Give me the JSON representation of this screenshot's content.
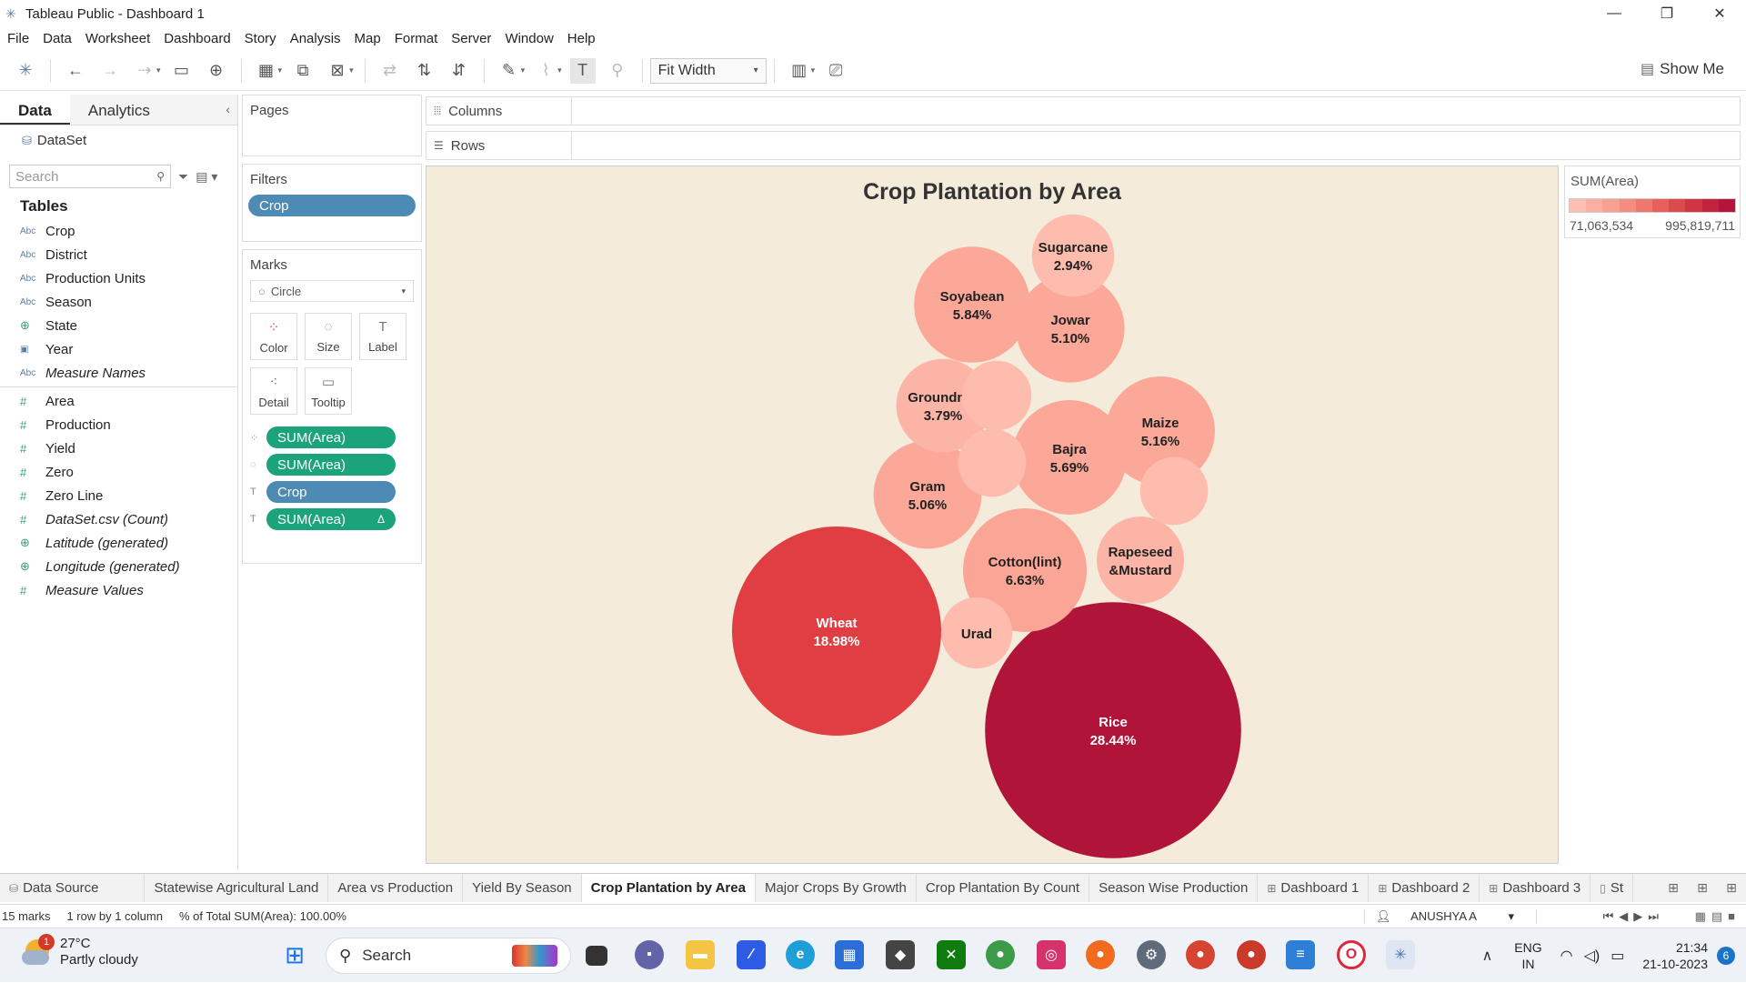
{
  "window": {
    "title": "Tableau Public - Dashboard 1"
  },
  "menu": [
    "File",
    "Data",
    "Worksheet",
    "Dashboard",
    "Story",
    "Analysis",
    "Map",
    "Format",
    "Server",
    "Window",
    "Help"
  ],
  "toolbar": {
    "fit": "Fit Width",
    "show_me": "Show Me"
  },
  "data_pane": {
    "tab_data": "Data",
    "tab_analytics": "Analytics",
    "dataset": "DataSet",
    "search_placeholder": "Search",
    "tables_heading": "Tables",
    "dimensions": [
      {
        "type": "Abc",
        "name": "Crop"
      },
      {
        "type": "Abc",
        "name": "District"
      },
      {
        "type": "Abc",
        "name": "Production Units"
      },
      {
        "type": "Abc",
        "name": "Season"
      },
      {
        "type": "globe",
        "name": "State"
      },
      {
        "type": "date",
        "name": "Year"
      },
      {
        "type": "Abc",
        "name": "Measure Names"
      }
    ],
    "measures": [
      {
        "type": "#",
        "name": "Area"
      },
      {
        "type": "#",
        "name": "Production"
      },
      {
        "type": "#",
        "name": "Yield"
      },
      {
        "type": "#",
        "name": "Zero"
      },
      {
        "type": "#",
        "name": "Zero Line"
      },
      {
        "type": "#",
        "name": "DataSet.csv (Count)"
      },
      {
        "type": "globe",
        "name": "Latitude (generated)"
      },
      {
        "type": "globe",
        "name": "Longitude (generated)"
      },
      {
        "type": "#",
        "name": "Measure Values"
      }
    ]
  },
  "pages": {
    "label": "Pages"
  },
  "filters": {
    "label": "Filters",
    "pill": "Crop"
  },
  "marks": {
    "label": "Marks",
    "type": "Circle",
    "buttons": [
      "Color",
      "Size",
      "Label",
      "Detail",
      "Tooltip"
    ],
    "pills": [
      "SUM(Area)",
      "SUM(Area)",
      "Crop",
      "SUM(Area)"
    ]
  },
  "shelves": {
    "columns": "Columns",
    "rows": "Rows"
  },
  "legend": {
    "title": "SUM(Area)",
    "min": "71,063,534",
    "max": "995,819,711"
  },
  "colors": {
    "view_bg": "#f4ebdb",
    "pill_blue": "#4e8bb4",
    "pill_green": "#1ba37c"
  },
  "chart_data": {
    "type": "packed-bubble",
    "title": "Crop Plantation by Area",
    "measure": "SUM(Area)",
    "color_range": [
      "71,063,534",
      "995,819,711"
    ],
    "bubbles": [
      {
        "crop": "Rice",
        "share": "28.44%",
        "value_pct": 28.44,
        "color": "#b01539",
        "text": "#ffffff"
      },
      {
        "crop": "Wheat",
        "share": "18.98%",
        "value_pct": 18.98,
        "color": "#e13e44",
        "text": "#ffffff"
      },
      {
        "crop": "Cotton(lint)",
        "share": "6.63%",
        "value_pct": 6.63,
        "color": "#fba596",
        "text": "#222222"
      },
      {
        "crop": "Soyabean",
        "share": "5.84%",
        "value_pct": 5.84,
        "color": "#fca899",
        "text": "#222222"
      },
      {
        "crop": "Bajra",
        "share": "5.69%",
        "value_pct": 5.69,
        "color": "#fca899",
        "text": "#222222"
      },
      {
        "crop": "Maize",
        "share": "5.16%",
        "value_pct": 5.16,
        "color": "#fca899",
        "text": "#222222"
      },
      {
        "crop": "Jowar",
        "share": "5.10%",
        "value_pct": 5.1,
        "color": "#fca899",
        "text": "#222222"
      },
      {
        "crop": "Gram",
        "share": "5.06%",
        "value_pct": 5.06,
        "color": "#fca899",
        "text": "#222222"
      },
      {
        "crop": "Groundnut",
        "share": "3.79%",
        "value_pct": 3.79,
        "color": "#fcb4a6",
        "text": "#222222"
      },
      {
        "crop": "Rapeseed &Mustard",
        "share": "",
        "value_pct": 3.3,
        "color": "#fcb4a6",
        "text": "#222222"
      },
      {
        "crop": "Sugarcane",
        "share": "2.94%",
        "value_pct": 2.94,
        "color": "#fdbcae",
        "text": "#222222"
      },
      {
        "crop": "Urad",
        "share": "",
        "value_pct": 2.2,
        "color": "#fdbcae",
        "text": "#222222"
      },
      {
        "crop": "",
        "share": "",
        "value_pct": 2.1,
        "color": "#fdbcae",
        "text": "#222222"
      },
      {
        "crop": "",
        "share": "",
        "value_pct": 2.0,
        "color": "#fdbcae",
        "text": "#222222"
      },
      {
        "crop": "",
        "share": "",
        "value_pct": 2.0,
        "color": "#fdbcae",
        "text": "#222222"
      }
    ]
  },
  "sheet_tabs": [
    {
      "label": "Data Source",
      "icon": "datasource",
      "active": false
    },
    {
      "label": "Statewise Agricultural Land",
      "icon": "",
      "active": false
    },
    {
      "label": "Area vs Production",
      "icon": "",
      "active": false
    },
    {
      "label": "Yield By Season",
      "icon": "",
      "active": false
    },
    {
      "label": "Crop Plantation by Area",
      "icon": "",
      "active": true
    },
    {
      "label": "Major Crops By Growth",
      "icon": "",
      "active": false
    },
    {
      "label": "Crop Plantation By Count",
      "icon": "",
      "active": false
    },
    {
      "label": "Season Wise Production",
      "icon": "",
      "active": false
    },
    {
      "label": "Dashboard 1",
      "icon": "dashboard",
      "active": false
    },
    {
      "label": "Dashboard 2",
      "icon": "dashboard",
      "active": false
    },
    {
      "label": "Dashboard 3",
      "icon": "dashboard",
      "active": false
    },
    {
      "label": "St",
      "icon": "story",
      "active": false
    }
  ],
  "status": {
    "marks": "15 marks",
    "dims": "1 row by 1 column",
    "pct": "% of Total SUM(Area): 100.00%",
    "user": "ANUSHYA A"
  },
  "taskbar": {
    "weather_temp": "27°C",
    "weather_desc": "Partly cloudy",
    "weather_badge": "1",
    "search": "Search",
    "lang1": "ENG",
    "lang2": "IN",
    "time": "21:34",
    "date": "21-10-2023",
    "notifications": "6"
  }
}
